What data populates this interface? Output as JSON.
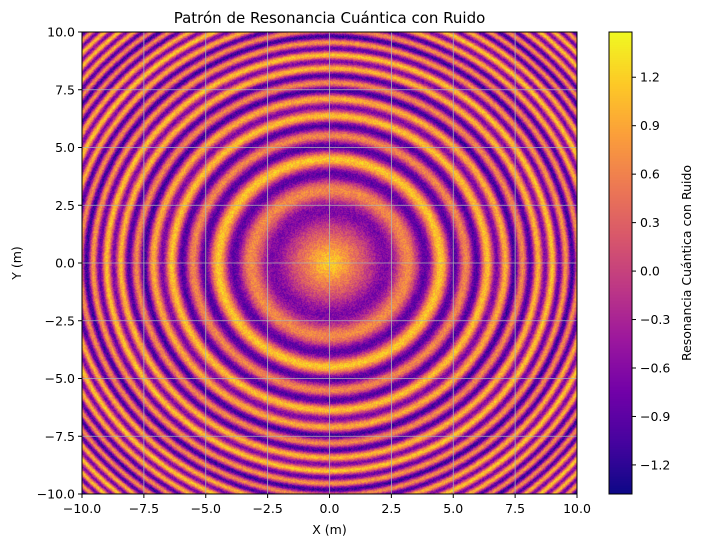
{
  "chart_data": {
    "type": "heatmap",
    "title": "Patrón de Resonancia Cuántica con Ruido",
    "xlabel": "X (m)",
    "ylabel": "Y (m)",
    "xlim": [
      -10,
      10
    ],
    "ylim": [
      -10,
      10
    ],
    "x_ticks": [
      -10,
      -7.5,
      -5,
      -2.5,
      0,
      2.5,
      5,
      7.5,
      10
    ],
    "x_tick_labels": [
      "−10.0",
      "−7.5",
      "−5.0",
      "−2.5",
      "0.0",
      "2.5",
      "5.0",
      "7.5",
      "10.0"
    ],
    "y_ticks": [
      -10,
      -7.5,
      -5,
      -2.5,
      0,
      2.5,
      5,
      7.5,
      10
    ],
    "y_tick_labels": [
      "−10.0",
      "−7.5",
      "−5.0",
      "−2.5",
      "0.0",
      "2.5",
      "5.0",
      "7.5",
      "10.0"
    ],
    "grid": true,
    "colormap": "plasma",
    "pattern": "concentric rings centered at origin, sin(r^2)/r-style profile with additive noise",
    "colorbar": {
      "label": "Resonancia Cuántica con Ruido",
      "range": [
        -1.38,
        1.48
      ],
      "ticks": [
        -1.2,
        -0.9,
        -0.6,
        -0.3,
        0.0,
        0.3,
        0.6,
        0.9,
        1.2
      ],
      "tick_labels": [
        "−1.2",
        "−0.9",
        "−0.6",
        "−0.3",
        "0.0",
        "0.3",
        "0.6",
        "0.9",
        "1.2"
      ]
    },
    "colors": {
      "plasma_stops": [
        "#0d0887",
        "#46039f",
        "#7201a8",
        "#9c179e",
        "#bd3786",
        "#d8576b",
        "#ed7953",
        "#fb9f3a",
        "#fdca26",
        "#f0f921"
      ],
      "grid": "#b0b0b0"
    }
  }
}
